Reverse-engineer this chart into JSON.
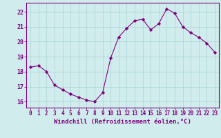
{
  "x": [
    0,
    1,
    2,
    3,
    4,
    5,
    6,
    7,
    8,
    9,
    10,
    11,
    12,
    13,
    14,
    15,
    16,
    17,
    18,
    19,
    20,
    21,
    22,
    23
  ],
  "y": [
    18.3,
    18.4,
    18.0,
    17.1,
    16.8,
    16.5,
    16.3,
    16.1,
    16.0,
    16.6,
    18.9,
    20.3,
    20.9,
    21.4,
    21.5,
    20.8,
    21.2,
    22.2,
    21.9,
    21.0,
    20.6,
    20.3,
    19.9,
    19.3
  ],
  "line_color": "#800080",
  "marker": "D",
  "marker_size": 2.2,
  "bg_color": "#d0ecec",
  "grid_color": "#aed8d8",
  "axis_color": "#800080",
  "tick_color": "#800080",
  "xlabel": "Windchill (Refroidissement éolien,°C)",
  "xlabel_fontsize": 6.5,
  "xtick_fontsize": 5.5,
  "ytick_fontsize": 6,
  "ylabel_ticks": [
    16,
    17,
    18,
    19,
    20,
    21,
    22
  ],
  "ylim": [
    15.6,
    22.6
  ],
  "xlim": [
    -0.5,
    23.5
  ]
}
